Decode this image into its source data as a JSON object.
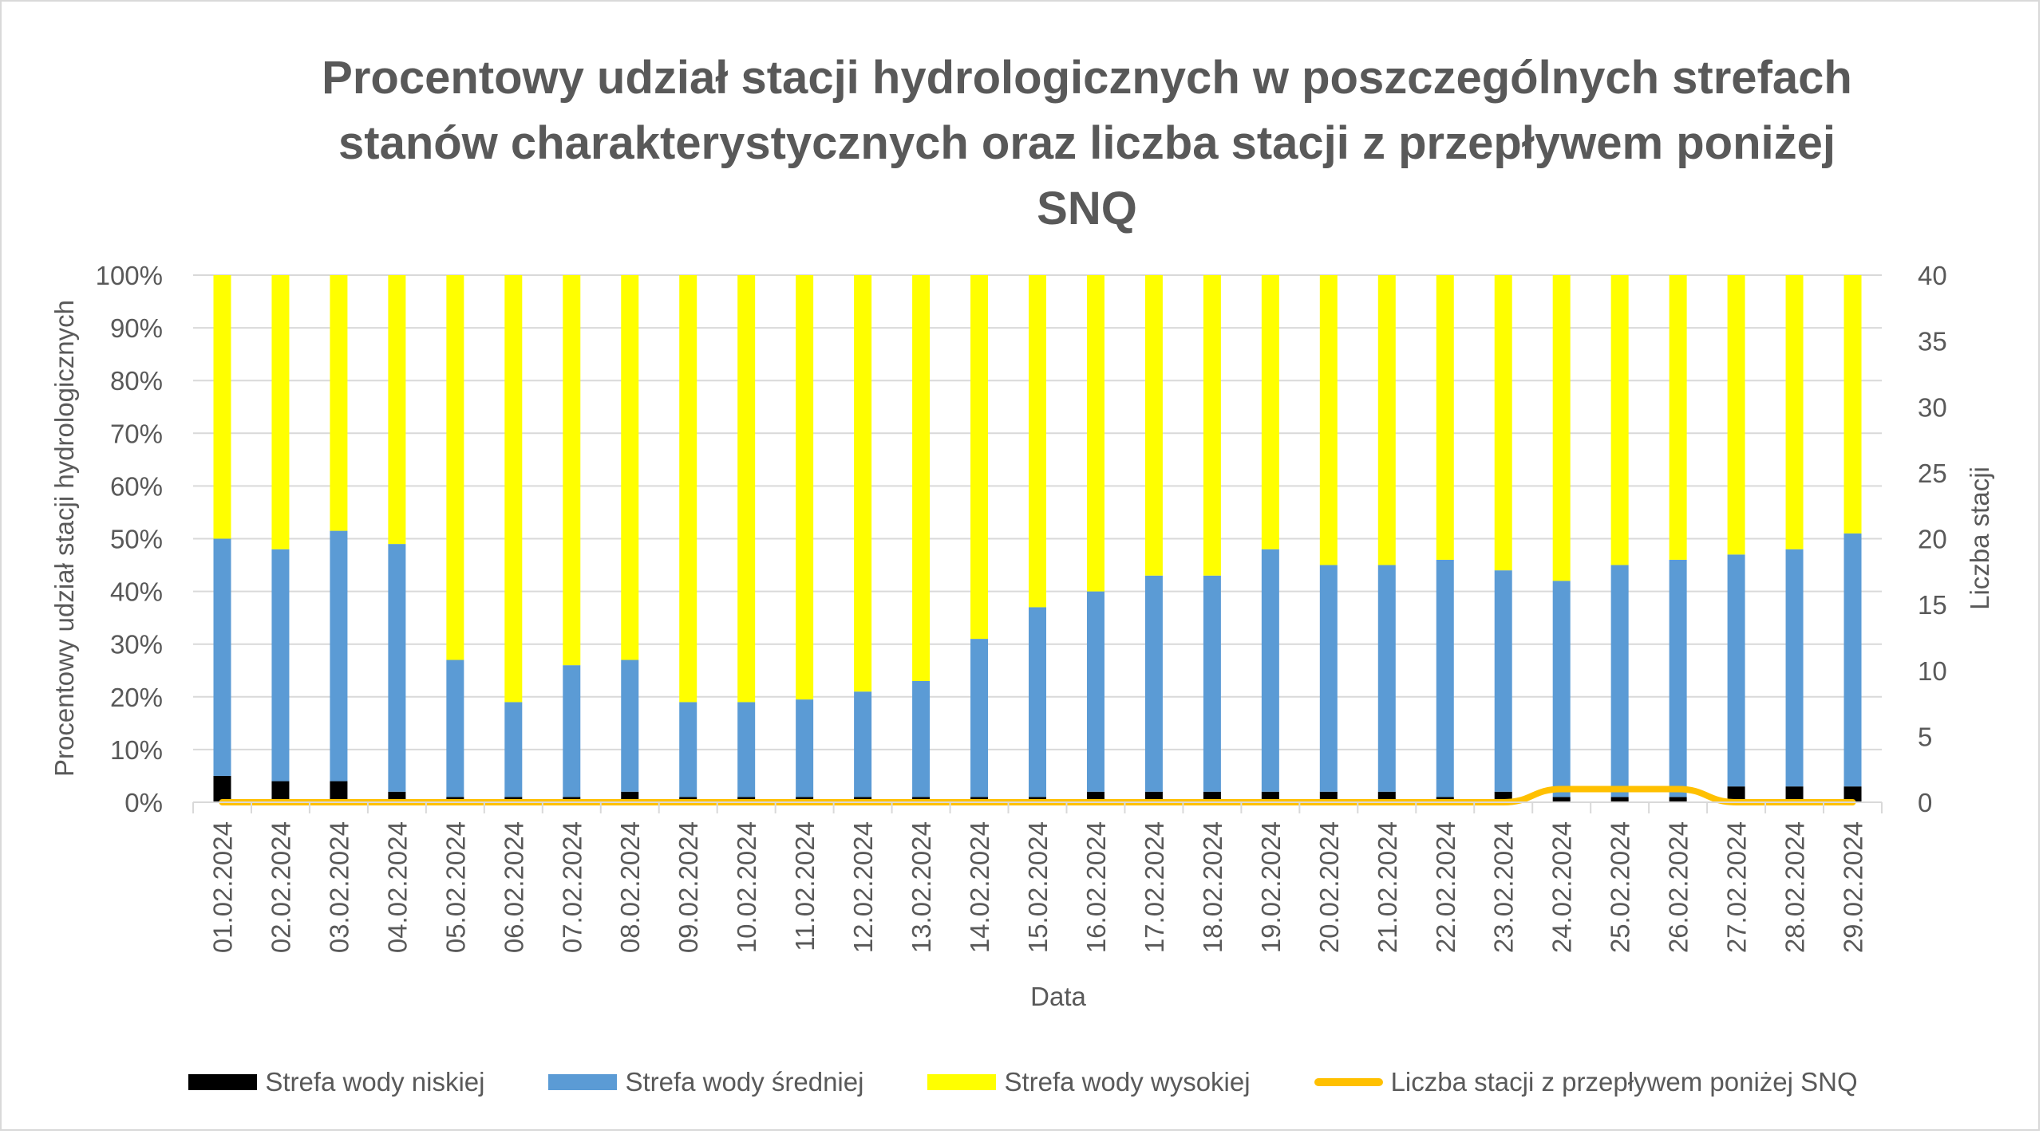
{
  "chart_data": {
    "type": "bar",
    "title": "Procentowy udział stacji hydrologicznych w poszczególnych strefach stanów charakterystycznych oraz liczba stacji z przepływem poniżej SNQ",
    "xlabel": "Data",
    "ylabel": "Procentowy udział stacji hydrologicznych",
    "y2label": "Liczba stacji",
    "stacked": true,
    "ylim": [
      0,
      100
    ],
    "y2lim": [
      0,
      40
    ],
    "yticks": [
      "0%",
      "10%",
      "20%",
      "30%",
      "40%",
      "50%",
      "60%",
      "70%",
      "80%",
      "90%",
      "100%"
    ],
    "y2ticks": [
      "0",
      "5",
      "10",
      "15",
      "20",
      "25",
      "30",
      "35",
      "40"
    ],
    "grid": true,
    "legend_position": "bottom",
    "categories": [
      "01.02.2024",
      "02.02.2024",
      "03.02.2024",
      "04.02.2024",
      "05.02.2024",
      "06.02.2024",
      "07.02.2024",
      "08.02.2024",
      "09.02.2024",
      "10.02.2024",
      "11.02.2024",
      "12.02.2024",
      "13.02.2024",
      "14.02.2024",
      "15.02.2024",
      "16.02.2024",
      "17.02.2024",
      "18.02.2024",
      "19.02.2024",
      "20.02.2024",
      "21.02.2024",
      "22.02.2024",
      "23.02.2024",
      "24.02.2024",
      "25.02.2024",
      "26.02.2024",
      "27.02.2024",
      "28.02.2024",
      "29.02.2024"
    ],
    "series": [
      {
        "name": "Strefa wody niskiej",
        "type": "bar",
        "axis": "left",
        "color": "#000000",
        "values": [
          5,
          4,
          4,
          2,
          1,
          1,
          1,
          2,
          1,
          1,
          1,
          1,
          1,
          1,
          1,
          2,
          2,
          2,
          2,
          2,
          2,
          1,
          2,
          1,
          1,
          1,
          3,
          3,
          3
        ]
      },
      {
        "name": "Strefa wody średniej",
        "type": "bar",
        "axis": "left",
        "color": "#5b9bd5",
        "values": [
          45,
          44,
          47.5,
          47,
          26,
          18,
          25,
          25,
          18,
          18,
          18.5,
          20,
          22,
          30,
          36,
          38,
          41,
          41,
          46,
          43,
          43,
          45,
          42,
          41,
          44,
          45,
          44,
          45,
          48
        ]
      },
      {
        "name": "Strefa wody wysokiej",
        "type": "bar",
        "axis": "left",
        "color": "#ffff00",
        "values": [
          50,
          52,
          48.5,
          51,
          73,
          81,
          74,
          73,
          81,
          81,
          80.5,
          79,
          77,
          69,
          63,
          60,
          57,
          57,
          52,
          55,
          55,
          54,
          56,
          58,
          55,
          54,
          53,
          52,
          49
        ]
      },
      {
        "name": "Liczba stacji z przepływem poniżej SNQ",
        "type": "line",
        "axis": "right",
        "color": "#ffc000",
        "values": [
          0,
          0,
          0,
          0,
          0,
          0,
          0,
          0,
          0,
          0,
          0,
          0,
          0,
          0,
          0,
          0,
          0,
          0,
          0,
          0,
          0,
          0,
          0,
          1,
          1,
          1,
          0,
          0,
          0
        ]
      }
    ]
  }
}
